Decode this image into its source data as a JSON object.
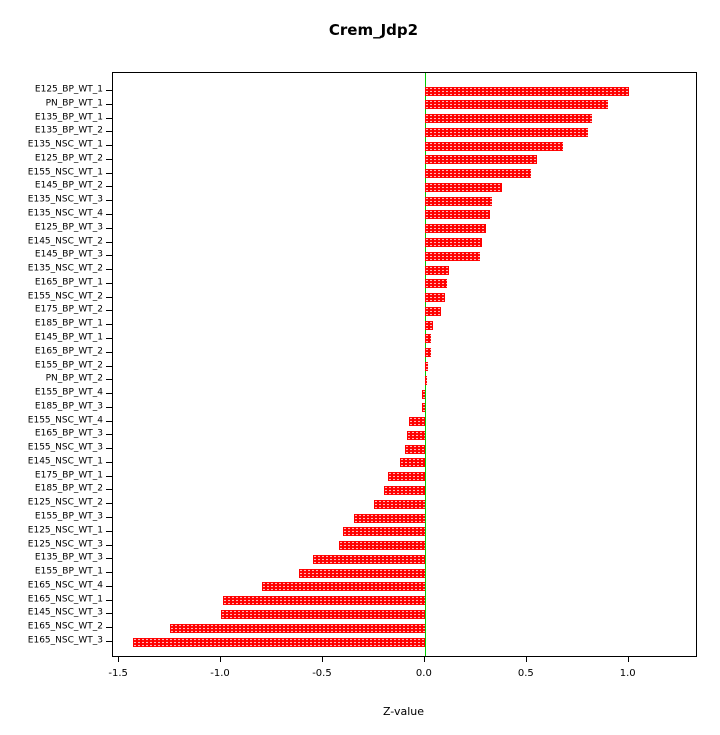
{
  "title": "Crem_Jdp2",
  "chart_data": {
    "type": "bar",
    "orientation": "horizontal",
    "title": "Crem_Jdp2",
    "xlabel": "Z-value",
    "ylabel": "",
    "xlim": [
      -1.53,
      1.33
    ],
    "x_ticks": [
      -1.5,
      -1.0,
      -0.5,
      0.0,
      0.5,
      1.0
    ],
    "x_tick_labels": [
      "-1.5",
      "-1.0",
      "-0.5",
      "0.0",
      "0.5",
      "1.0"
    ],
    "bar_color": "#ff0000",
    "zero_line_color": "#00cc00",
    "grid": false,
    "legend": false,
    "categories": [
      "E125_BP_WT_1",
      "PN_BP_WT_1",
      "E135_BP_WT_1",
      "E135_BP_WT_2",
      "E135_NSC_WT_1",
      "E125_BP_WT_2",
      "E155_NSC_WT_1",
      "E145_BP_WT_2",
      "E135_NSC_WT_3",
      "E135_NSC_WT_4",
      "E125_BP_WT_3",
      "E145_NSC_WT_2",
      "E145_BP_WT_3",
      "E135_NSC_WT_2",
      "E165_BP_WT_1",
      "E155_NSC_WT_2",
      "E175_BP_WT_2",
      "E185_BP_WT_1",
      "E145_BP_WT_1",
      "E165_BP_WT_2",
      "E155_BP_WT_2",
      "PN_BP_WT_2",
      "E155_BP_WT_4",
      "E185_BP_WT_3",
      "E155_NSC_WT_4",
      "E165_BP_WT_3",
      "E155_NSC_WT_3",
      "E145_NSC_WT_1",
      "E175_BP_WT_1",
      "E185_BP_WT_2",
      "E125_NSC_WT_2",
      "E155_BP_WT_3",
      "E125_NSC_WT_1",
      "E125_NSC_WT_3",
      "E135_BP_WT_3",
      "E155_BP_WT_1",
      "E165_NSC_WT_4",
      "E165_NSC_WT_1",
      "E145_NSC_WT_3",
      "E165_NSC_WT_2",
      "E165_NSC_WT_3"
    ],
    "values": [
      1.0,
      0.9,
      0.82,
      0.8,
      0.68,
      0.55,
      0.52,
      0.38,
      0.33,
      0.32,
      0.3,
      0.28,
      0.27,
      0.12,
      0.11,
      0.1,
      0.08,
      0.04,
      0.03,
      0.03,
      0.015,
      0.01,
      -0.015,
      -0.015,
      -0.08,
      -0.09,
      -0.1,
      -0.12,
      -0.18,
      -0.2,
      -0.25,
      -0.35,
      -0.4,
      -0.42,
      -0.55,
      -0.62,
      -0.8,
      -0.99,
      -1.0,
      -1.25,
      -1.43
    ]
  }
}
